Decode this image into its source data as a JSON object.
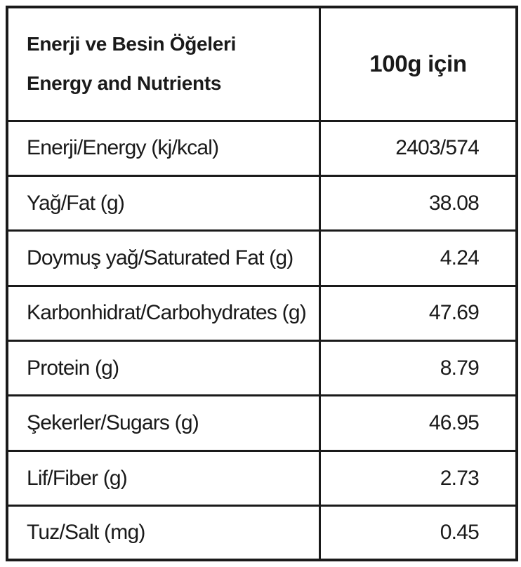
{
  "header": {
    "title_tr": "Enerji ve Besin Öğeleri",
    "title_en": "Energy and Nutrients",
    "per": "100g için"
  },
  "table": {
    "rows": [
      [
        "Enerji/Energy (kj/kcal)",
        "2403/574"
      ],
      [
        "Yağ/Fat (g)",
        "38.08"
      ],
      [
        "Doymuş yağ/Saturated Fat (g)",
        "4.24"
      ],
      [
        "Karbonhidrat/Carbohydrates (g)",
        "47.69"
      ],
      [
        "Protein (g)",
        "8.79"
      ],
      [
        "Şekerler/Sugars (g)",
        "46.95"
      ],
      [
        "Lif/Fiber (g)",
        "2.73"
      ],
      [
        "Tuz/Salt (mg)",
        "0.45"
      ]
    ]
  }
}
